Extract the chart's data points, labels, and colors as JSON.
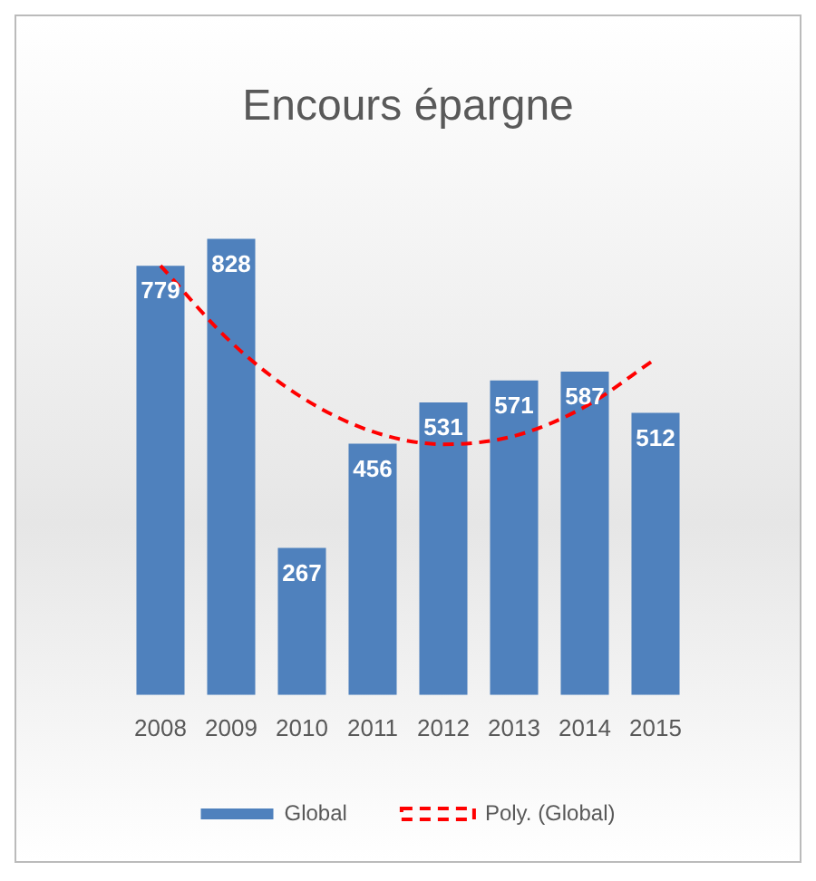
{
  "chart_data": {
    "type": "bar",
    "title": "Encours épargne",
    "categories": [
      "2008",
      "2009",
      "2010",
      "2011",
      "2012",
      "2013",
      "2014",
      "2015"
    ],
    "series": [
      {
        "name": "Global",
        "color": "#4f81bd",
        "values": [
          779,
          828,
          267,
          456,
          531,
          571,
          587,
          512
        ],
        "value_labels": [
          "779",
          "828",
          "267",
          "456",
          "531",
          "571",
          "587",
          "512"
        ]
      },
      {
        "name": "Poly. (Global)",
        "type": "line",
        "color": "#ff0000",
        "line_style": "dashed",
        "marker": "none",
        "values": [
          779,
          640,
          540,
          478,
          455,
          470,
          523,
          610
        ]
      }
    ],
    "legend": "bottom",
    "grid": false,
    "tick_labels": "x"
  }
}
